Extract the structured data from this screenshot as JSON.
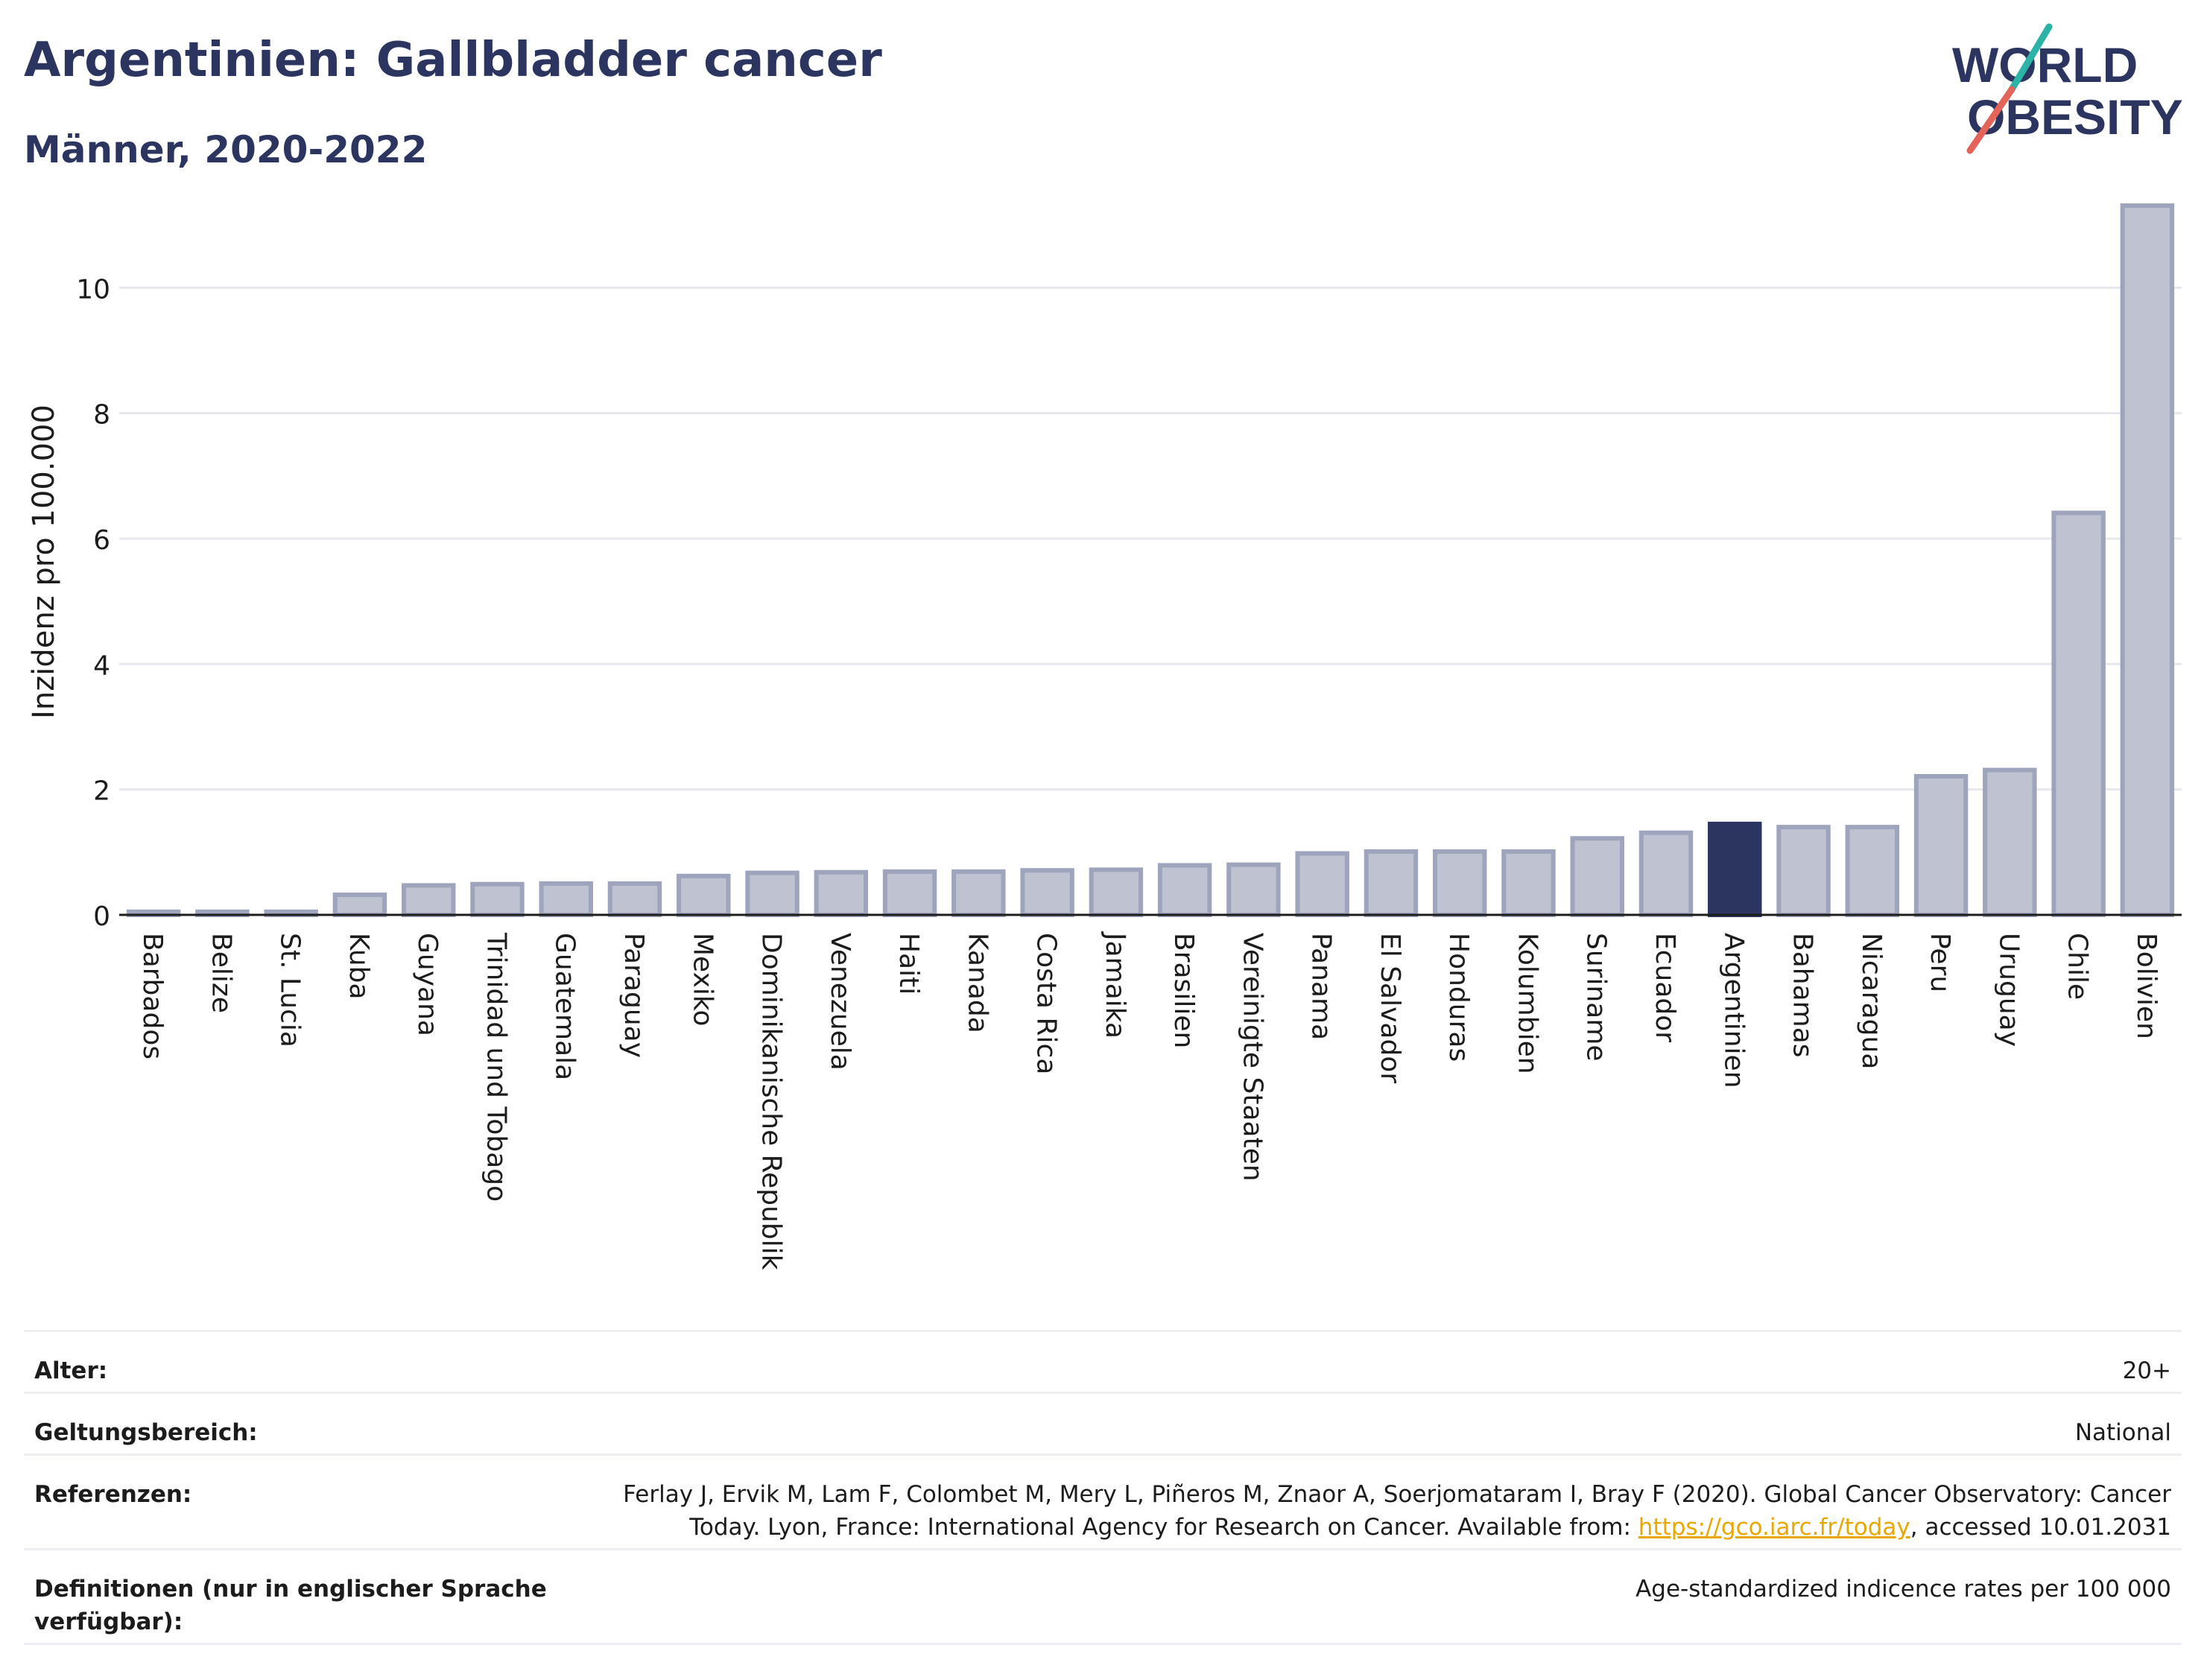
{
  "header": {
    "title": "Argentinien: Gallbladder cancer",
    "subtitle": "Männer, 2020-2022"
  },
  "logo": {
    "line1": "WORLD",
    "line2": "OBESITY",
    "colors": {
      "text": "#2b3560",
      "slash_top": "#2ab3a6",
      "slash_bottom": "#e5645a"
    }
  },
  "chart_data": {
    "type": "bar",
    "ylabel": "Inzidenz pro 100.000",
    "ylim": [
      0,
      11.5
    ],
    "yticks": [
      0,
      2,
      4,
      6,
      8,
      10
    ],
    "grid": true,
    "highlight": "Argentinien",
    "colors": {
      "bar": "#bfc3d1",
      "bar_edge": "#9ea4bc",
      "highlight": "#2b3560"
    },
    "categories": [
      "Barbados",
      "Belize",
      "St. Lucia",
      "Kuba",
      "Guyana",
      "Trinidad und Tobago",
      "Guatemala",
      "Paraguay",
      "Mexiko",
      "Dominikanische Republik",
      "Venezuela",
      "Haiti",
      "Kanada",
      "Costa Rica",
      "Jamaika",
      "Brasilien",
      "Vereinigte Staaten",
      "Panama",
      "El Salvador",
      "Honduras",
      "Kolumbien",
      "Suriname",
      "Ecuador",
      "Argentinien",
      "Bahamas",
      "Nicaragua",
      "Peru",
      "Uruguay",
      "Chile",
      "Bolivien"
    ],
    "values": [
      0.05,
      0.05,
      0.05,
      0.32,
      0.47,
      0.49,
      0.5,
      0.5,
      0.62,
      0.67,
      0.68,
      0.69,
      0.69,
      0.71,
      0.72,
      0.79,
      0.8,
      0.98,
      1.01,
      1.01,
      1.01,
      1.22,
      1.31,
      1.45,
      1.4,
      1.4,
      2.21,
      2.31,
      6.41,
      11.31
    ]
  },
  "meta": [
    {
      "key": "Alter:",
      "value": "20+"
    },
    {
      "key": "Geltungsbereich:",
      "value": "National"
    },
    {
      "key": "Referenzen:",
      "value_pre": "Ferlay J, Ervik M, Lam F, Colombet M, Mery L, Piñeros M, Znaor A, Soerjomataram I, Bray F (2020). Global Cancer Observatory: Cancer Today. Lyon, France: International Agency for Research on Cancer. Available from: ",
      "link": "https://gco.iarc.fr/today",
      "value_post": ", accessed 10.01.2031"
    },
    {
      "key": "Definitionen (nur in englischer Sprache verfügbar):",
      "value": "Age-standardized indicence rates per 100 000"
    }
  ]
}
